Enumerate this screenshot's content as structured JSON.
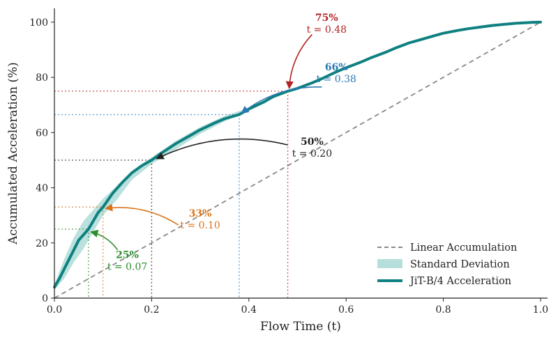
{
  "chart_data": {
    "type": "line",
    "xlabel": "Flow Time (t)",
    "ylabel": "Accumulated Acceleration (%)",
    "xlim": [
      0,
      1.0
    ],
    "ylim": [
      0,
      105
    ],
    "x_ticks": [
      "0.0",
      "0.2",
      "0.4",
      "0.6",
      "0.8",
      "1.0"
    ],
    "y_ticks": [
      "0",
      "20",
      "40",
      "60",
      "80",
      "100"
    ],
    "grid": false,
    "legend_position": "bottom-right",
    "legend": {
      "linear": "Linear Accumulation",
      "std": "Standard Deviation",
      "main": "JiT-B/4 Acceleration"
    },
    "colors": {
      "main": "#0f8080",
      "std": "#a9d9d5",
      "linear": "#888888",
      "p25": "#2e8b2e",
      "p33": "#d9741a",
      "p50": "#222222",
      "p66": "#2a78b4",
      "p75": "#b22222"
    },
    "series": [
      {
        "name": "JiT-B/4 Acceleration",
        "x": [
          0,
          0.01,
          0.02,
          0.03,
          0.04,
          0.05,
          0.06,
          0.07,
          0.08,
          0.09,
          0.1,
          0.12,
          0.14,
          0.16,
          0.18,
          0.2,
          0.22,
          0.25,
          0.28,
          0.3,
          0.33,
          0.35,
          0.38,
          0.4,
          0.43,
          0.45,
          0.48,
          0.5,
          0.53,
          0.55,
          0.58,
          0.6,
          0.63,
          0.65,
          0.68,
          0.7,
          0.73,
          0.75,
          0.78,
          0.8,
          0.83,
          0.85,
          0.88,
          0.9,
          0.93,
          0.95,
          0.98,
          1.0
        ],
        "y": [
          4,
          7,
          10.5,
          14,
          17.5,
          21,
          23,
          25,
          28,
          31,
          33,
          38,
          42,
          45.5,
          48,
          50,
          52.5,
          56,
          59,
          61,
          63.5,
          65,
          66.5,
          68.5,
          71,
          73,
          75,
          76,
          78,
          79.5,
          82,
          83.5,
          85.5,
          87,
          89,
          90.5,
          92.5,
          93.5,
          95,
          96,
          97,
          97.6,
          98.3,
          98.8,
          99.3,
          99.6,
          99.9,
          100
        ]
      },
      {
        "name": "Standard Deviation",
        "x": [
          0,
          0.02,
          0.04,
          0.06,
          0.08,
          0.1,
          0.13,
          0.16,
          0.2,
          0.25,
          0.3,
          0.35,
          0.4
        ],
        "upper": [
          5,
          14,
          22,
          28,
          32,
          36,
          41,
          46,
          51,
          57,
          62,
          66,
          69
        ],
        "lower": [
          3,
          7,
          13,
          18,
          24,
          30,
          36,
          43,
          48.5,
          54,
          59.5,
          64,
          68
        ]
      },
      {
        "name": "Linear Accumulation",
        "x": [
          0,
          1.0
        ],
        "y": [
          0,
          100
        ]
      }
    ],
    "annotations": [
      {
        "pct": "25%",
        "t_label": "t = 0.07",
        "t": 0.07,
        "y": 25,
        "color_key": "p25",
        "text_pos": [
          0.15,
          13
        ],
        "arrow_from": [
          0.13,
          17.5
        ],
        "arrow_to": [
          0.075,
          24
        ]
      },
      {
        "pct": "33%",
        "t_label": "t = 0.10",
        "t": 0.1,
        "y": 33,
        "color_key": "p33",
        "text_pos": [
          0.3,
          28
        ],
        "arrow_from": [
          0.255,
          26.5
        ],
        "arrow_to": [
          0.105,
          32.5
        ]
      },
      {
        "pct": "50%",
        "t_label": "t = 0.20",
        "t": 0.2,
        "y": 50,
        "color_key": "p50",
        "text_pos": [
          0.53,
          54
        ],
        "arrow_from": [
          0.48,
          55.5
        ],
        "arrow_to": [
          0.21,
          50.5
        ]
      },
      {
        "pct": "66%",
        "t_label": "t = 0.38",
        "t": 0.38,
        "y": 66.5,
        "color_key": "p66",
        "text_pos": [
          0.58,
          81
        ],
        "arrow_from": [
          0.55,
          76.5
        ],
        "arrow_to": [
          0.385,
          67
        ]
      },
      {
        "pct": "75%",
        "t_label": "t = 0.48",
        "t": 0.48,
        "y": 75,
        "color_key": "p75",
        "text_pos": [
          0.56,
          99
        ],
        "arrow_from": [
          0.53,
          95.5
        ],
        "arrow_to": [
          0.483,
          76
        ]
      }
    ]
  }
}
